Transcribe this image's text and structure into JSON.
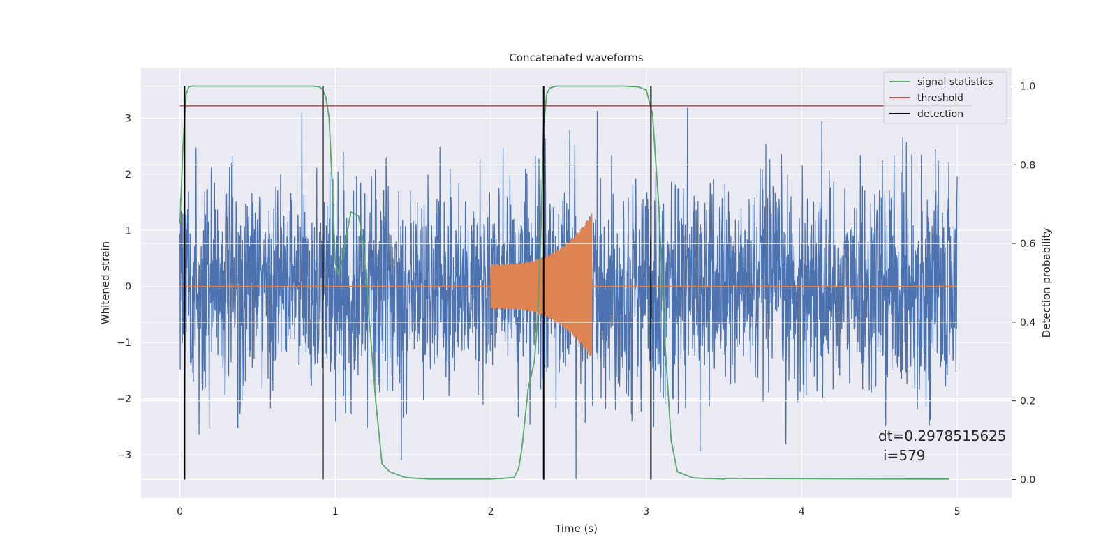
{
  "chart_data": {
    "type": "line",
    "title": "Concatenated waveforms",
    "xlabel": "Time (s)",
    "ylabel": "Whitened strain",
    "y2label": "Detection probability",
    "xlim": [
      -0.25,
      5.35
    ],
    "ylim": [
      -3.77,
      3.9
    ],
    "y2lim": [
      -0.047,
      1.047
    ],
    "x_ticks": [
      0,
      1,
      2,
      3,
      4,
      5
    ],
    "y_ticks": [
      -3,
      -2,
      -1,
      0,
      1,
      2,
      3
    ],
    "y2_ticks": [
      0.0,
      0.2,
      0.4,
      0.6,
      0.8,
      1.0
    ],
    "x_tick_labels": [
      "0",
      "1",
      "2",
      "3",
      "4",
      "5"
    ],
    "y_tick_labels": [
      "−3",
      "−2",
      "−1",
      "0",
      "1",
      "2",
      "3"
    ],
    "y2_tick_labels": [
      "0.0",
      "0.2",
      "0.4",
      "0.6",
      "0.8",
      "1.0"
    ],
    "grid": true,
    "legend_position": "top-right",
    "noise": {
      "x_range": [
        0,
        5
      ],
      "typical_amplitude": 1.2,
      "peak_range": [
        -3.45,
        3.45
      ],
      "color": "#4c72b0"
    },
    "injected_signal": {
      "color": "#dd8452",
      "chirps": [
        {
          "start": 2.0,
          "end": 2.65,
          "amp_start": 0.4,
          "amp_end": 1.3
        }
      ]
    },
    "series": [
      {
        "name": "signal statistics",
        "color": "#55a868",
        "axis": "right",
        "x": [
          0,
          0.02,
          0.04,
          0.06,
          0.08,
          0.1,
          0.3,
          0.85,
          0.9,
          0.92,
          0.94,
          0.96,
          0.98,
          1.0,
          1.02,
          1.05,
          1.1,
          1.15,
          1.18,
          1.22,
          1.26,
          1.3,
          1.35,
          1.45,
          1.6,
          2.0,
          2.15,
          2.18,
          2.2,
          2.24,
          2.28,
          2.3,
          2.32,
          2.34,
          2.36,
          2.38,
          2.42,
          2.5,
          2.85,
          2.95,
          3.0,
          3.04,
          3.08,
          3.12,
          3.16,
          3.2,
          3.3,
          3.5,
          3.52,
          4.0,
          4.95
        ],
        "y": [
          0.65,
          0.85,
          0.98,
          0.999,
          1.0,
          1.0,
          1.0,
          1.0,
          0.998,
          0.99,
          0.97,
          0.92,
          0.75,
          0.55,
          0.52,
          0.57,
          0.68,
          0.67,
          0.6,
          0.4,
          0.2,
          0.04,
          0.02,
          0.005,
          0.001,
          0.001,
          0.005,
          0.03,
          0.08,
          0.23,
          0.3,
          0.4,
          0.6,
          0.9,
          0.98,
          0.995,
          1.0,
          1.0,
          1.0,
          0.998,
          0.99,
          0.93,
          0.7,
          0.35,
          0.1,
          0.02,
          0.004,
          0.001,
          0.003,
          0.002,
          0.001
        ]
      },
      {
        "name": "threshold",
        "color": "#c44e52",
        "axis": "right",
        "x": [
          0,
          5.1
        ],
        "y": [
          0.95,
          0.95
        ]
      },
      {
        "name": "detection",
        "color": "#000000",
        "axis": "right",
        "type": "vlines",
        "x": [
          0.03,
          0.92,
          2.34,
          3.03
        ],
        "y_range": [
          0.0,
          1.0
        ]
      }
    ],
    "annotations": [
      "dt=0.2978515625",
      "i=579"
    ]
  }
}
